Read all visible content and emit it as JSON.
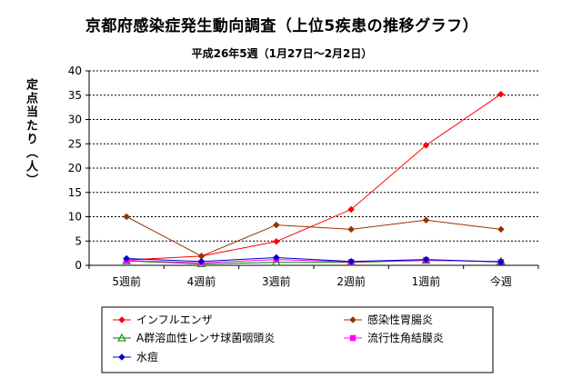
{
  "chart_data": {
    "type": "line",
    "title": "京都府感染症発生動向調査（上位5疾患の推移グラフ）",
    "subtitle": "平成26年5週（1月27日～2月2日）",
    "ylabel": "定点当たり（人）",
    "xlabel": "",
    "categories": [
      "5週前",
      "4週前",
      "3週前",
      "2週前",
      "1週前",
      "今週"
    ],
    "ylim": [
      0,
      40
    ],
    "yticks": [
      0,
      5,
      10,
      15,
      20,
      25,
      30,
      35,
      40
    ],
    "grid": true,
    "legend_position": "bottom",
    "series": [
      {
        "name": "インフルエンザ",
        "values": [
          1.1,
          1.9,
          4.9,
          11.5,
          24.7,
          35.2
        ],
        "color": "#ff0000",
        "marker": "diamond"
      },
      {
        "name": "感染性胃腸炎",
        "values": [
          10.0,
          1.9,
          8.3,
          7.4,
          9.3,
          7.4
        ],
        "color": "#993300",
        "marker": "diamond"
      },
      {
        "name": "A群溶血性レンサ球菌咽頭炎",
        "values": [
          0.9,
          0.3,
          0.6,
          0.6,
          1.0,
          0.8
        ],
        "color": "#008000",
        "marker": "triangle"
      },
      {
        "name": "流行性角結膜炎",
        "values": [
          1.0,
          0.5,
          1.2,
          0.7,
          1.1,
          0.7
        ],
        "color": "#ff00ff",
        "marker": "square"
      },
      {
        "name": "水痘",
        "values": [
          1.4,
          0.8,
          1.6,
          0.8,
          1.2,
          0.7
        ],
        "color": "#0000cc",
        "marker": "diamond"
      }
    ]
  }
}
